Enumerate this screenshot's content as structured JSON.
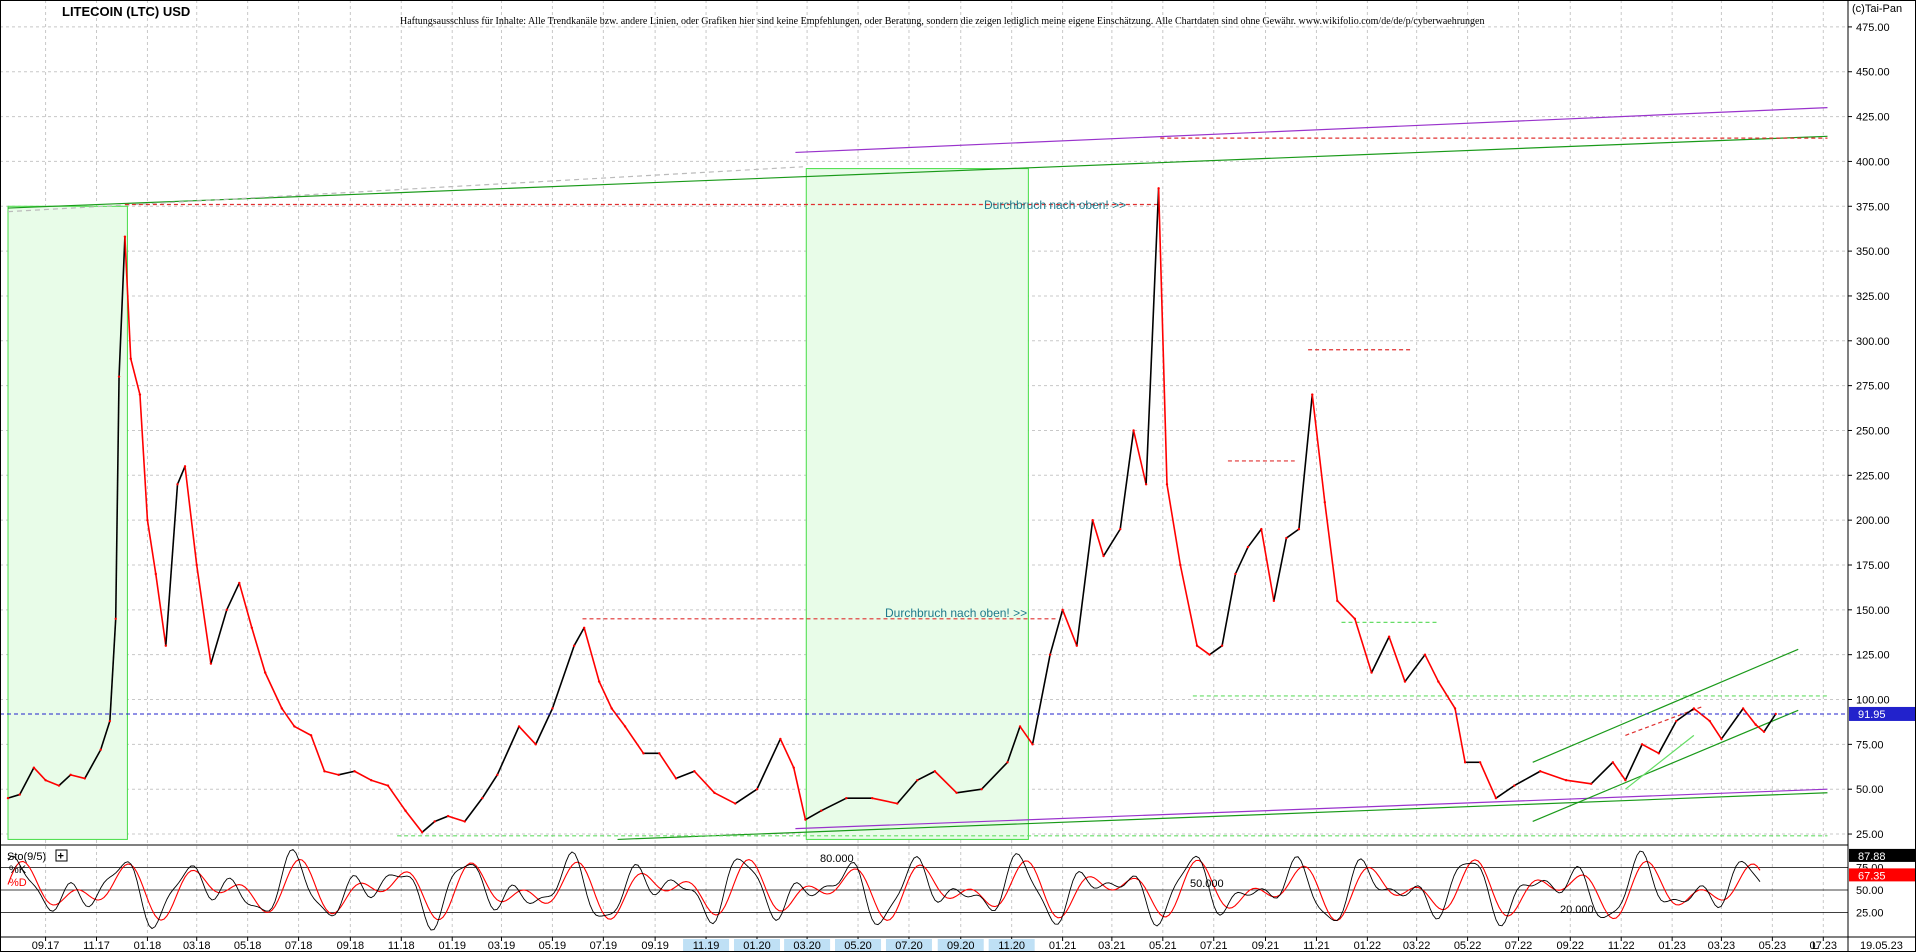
{
  "chart_data": {
    "type": "line",
    "title": "LITECOIN (LTC) USD",
    "disclaimer": "Haftungsausschluss für Inhalte: Alle Trendkanäle bzw. andere Linien, oder Grafiken hier sind keine Empfehlungen, oder Beratung, sondern die zeigen lediglich meine eigene Einschätzung. Alle Chartdaten sind ohne Gewähr. www.wikifolio.com/de/de/p/cyberwaehrungen",
    "copyright": "(c)Tai-Pan",
    "ylim": [
      20,
      490
    ],
    "y_ticks": [
      25,
      50,
      75,
      100,
      125,
      150,
      175,
      200,
      225,
      250,
      275,
      300,
      325,
      350,
      375,
      400,
      425,
      450,
      475
    ],
    "y_tick_labels": [
      "25.00",
      "50.00",
      "75.00",
      "100.00",
      "125.00",
      "150.00",
      "175.00",
      "200.00",
      "225.00",
      "250.00",
      "275.00",
      "300.00",
      "325.00",
      "350.00",
      "375.00",
      "400.00",
      "425.00",
      "450.00",
      "475.00"
    ],
    "x_tick_labels": [
      "09.17",
      "11.17",
      "01.18",
      "03.18",
      "05.18",
      "07.18",
      "09.18",
      "11.18",
      "01.19",
      "03.19",
      "05.19",
      "07.19",
      "09.19",
      "11.19",
      "01.20",
      "03.20",
      "05.20",
      "07.20",
      "09.20",
      "11.20",
      "01.21",
      "03.21",
      "05.21",
      "07.21",
      "09.21",
      "11.21",
      "01.22",
      "03.22",
      "05.22",
      "07.22",
      "09.22",
      "11.22",
      "01.23",
      "03.23",
      "05.23",
      "07.23"
    ],
    "x_end_label": "19.05.23",
    "x_end_marker": "L",
    "last_price": 91.95,
    "last_price_label": "91.95",
    "annotations": [
      "Durchbruch nach oben! >>",
      "Durchbruch nach oben! >>"
    ],
    "grid": true,
    "price_series": [
      [
        "2017-08-01",
        45
      ],
      [
        "2017-08-15",
        47
      ],
      [
        "2017-09-01",
        62
      ],
      [
        "2017-09-15",
        55
      ],
      [
        "2017-10-01",
        52
      ],
      [
        "2017-10-15",
        58
      ],
      [
        "2017-11-01",
        56
      ],
      [
        "2017-11-20",
        72
      ],
      [
        "2017-12-01",
        88
      ],
      [
        "2017-12-08",
        145
      ],
      [
        "2017-12-12",
        280
      ],
      [
        "2017-12-19",
        358
      ],
      [
        "2017-12-26",
        290
      ],
      [
        "2018-01-06",
        270
      ],
      [
        "2018-01-15",
        200
      ],
      [
        "2018-01-25",
        170
      ],
      [
        "2018-02-06",
        130
      ],
      [
        "2018-02-20",
        220
      ],
      [
        "2018-03-01",
        230
      ],
      [
        "2018-03-15",
        175
      ],
      [
        "2018-04-01",
        120
      ],
      [
        "2018-04-20",
        150
      ],
      [
        "2018-05-05",
        165
      ],
      [
        "2018-05-20",
        140
      ],
      [
        "2018-06-05",
        115
      ],
      [
        "2018-06-25",
        95
      ],
      [
        "2018-07-10",
        85
      ],
      [
        "2018-07-30",
        80
      ],
      [
        "2018-08-15",
        60
      ],
      [
        "2018-09-01",
        58
      ],
      [
        "2018-09-20",
        60
      ],
      [
        "2018-10-10",
        55
      ],
      [
        "2018-10-30",
        52
      ],
      [
        "2018-11-20",
        38
      ],
      [
        "2018-12-10",
        26
      ],
      [
        "2018-12-25",
        32
      ],
      [
        "2019-01-10",
        35
      ],
      [
        "2019-01-30",
        32
      ],
      [
        "2019-02-20",
        45
      ],
      [
        "2019-03-10",
        58
      ],
      [
        "2019-04-05",
        85
      ],
      [
        "2019-04-25",
        75
      ],
      [
        "2019-05-15",
        95
      ],
      [
        "2019-06-10",
        130
      ],
      [
        "2019-06-22",
        140
      ],
      [
        "2019-07-10",
        110
      ],
      [
        "2019-07-25",
        95
      ],
      [
        "2019-08-10",
        85
      ],
      [
        "2019-09-01",
        70
      ],
      [
        "2019-09-20",
        70
      ],
      [
        "2019-10-10",
        56
      ],
      [
        "2019-11-01",
        60
      ],
      [
        "2019-11-25",
        48
      ],
      [
        "2019-12-20",
        42
      ],
      [
        "2020-01-15",
        50
      ],
      [
        "2020-02-12",
        78
      ],
      [
        "2020-02-28",
        62
      ],
      [
        "2020-03-13",
        33
      ],
      [
        "2020-04-01",
        38
      ],
      [
        "2020-05-01",
        45
      ],
      [
        "2020-06-01",
        45
      ],
      [
        "2020-07-01",
        42
      ],
      [
        "2020-07-25",
        55
      ],
      [
        "2020-08-15",
        60
      ],
      [
        "2020-09-10",
        48
      ],
      [
        "2020-10-10",
        50
      ],
      [
        "2020-11-10",
        65
      ],
      [
        "2020-11-25",
        85
      ],
      [
        "2020-12-10",
        75
      ],
      [
        "2020-12-31",
        125
      ],
      [
        "2021-01-15",
        150
      ],
      [
        "2021-02-01",
        130
      ],
      [
        "2021-02-20",
        200
      ],
      [
        "2021-03-05",
        180
      ],
      [
        "2021-03-25",
        195
      ],
      [
        "2021-04-10",
        250
      ],
      [
        "2021-04-25",
        220
      ],
      [
        "2021-05-10",
        385
      ],
      [
        "2021-05-20",
        220
      ],
      [
        "2021-06-05",
        175
      ],
      [
        "2021-06-25",
        130
      ],
      [
        "2021-07-10",
        125
      ],
      [
        "2021-07-25",
        130
      ],
      [
        "2021-08-10",
        170
      ],
      [
        "2021-08-25",
        185
      ],
      [
        "2021-09-10",
        195
      ],
      [
        "2021-09-25",
        155
      ],
      [
        "2021-10-10",
        190
      ],
      [
        "2021-10-25",
        195
      ],
      [
        "2021-11-10",
        270
      ],
      [
        "2021-11-25",
        210
      ],
      [
        "2021-12-10",
        155
      ],
      [
        "2021-12-31",
        145
      ],
      [
        "2022-01-20",
        115
      ],
      [
        "2022-02-10",
        135
      ],
      [
        "2022-03-01",
        110
      ],
      [
        "2022-03-25",
        125
      ],
      [
        "2022-04-10",
        110
      ],
      [
        "2022-04-30",
        95
      ],
      [
        "2022-05-12",
        65
      ],
      [
        "2022-05-30",
        65
      ],
      [
        "2022-06-18",
        45
      ],
      [
        "2022-07-10",
        52
      ],
      [
        "2022-08-10",
        60
      ],
      [
        "2022-09-10",
        55
      ],
      [
        "2022-10-10",
        53
      ],
      [
        "2022-11-05",
        65
      ],
      [
        "2022-11-20",
        55
      ],
      [
        "2022-12-10",
        75
      ],
      [
        "2022-12-30",
        70
      ],
      [
        "2023-01-20",
        88
      ],
      [
        "2023-02-10",
        95
      ],
      [
        "2023-03-01",
        88
      ],
      [
        "2023-03-15",
        78
      ],
      [
        "2023-04-10",
        95
      ],
      [
        "2023-04-25",
        86
      ],
      [
        "2023-05-05",
        82
      ],
      [
        "2023-05-19",
        91.95
      ]
    ],
    "indicator": {
      "name": "Sto(9/5)",
      "k_label": "%K",
      "d_label": "%D",
      "k_value": 87.88,
      "d_value": 67.35,
      "k_value_label": "87.88",
      "d_value_label": "67.35",
      "ylim": [
        0,
        100
      ],
      "y_ticks": [
        25,
        50,
        75
      ],
      "y_tick_labels": [
        "25.00",
        "50.00",
        "75.00"
      ],
      "level_labels": [
        "80.000",
        "50.000",
        "20.000"
      ]
    }
  },
  "colors": {
    "price_up": "#000000",
    "price_down": "#ff0000",
    "trend_green": "#1a9a1a",
    "trend_purple": "#9933cc",
    "trend_lime": "#66dd66",
    "resistance_red": "#e03030",
    "last_price_blue": "#2222cc",
    "stoch_k": "#000000",
    "stoch_d": "#ff0000",
    "zone_fill": "#e8fce8"
  }
}
